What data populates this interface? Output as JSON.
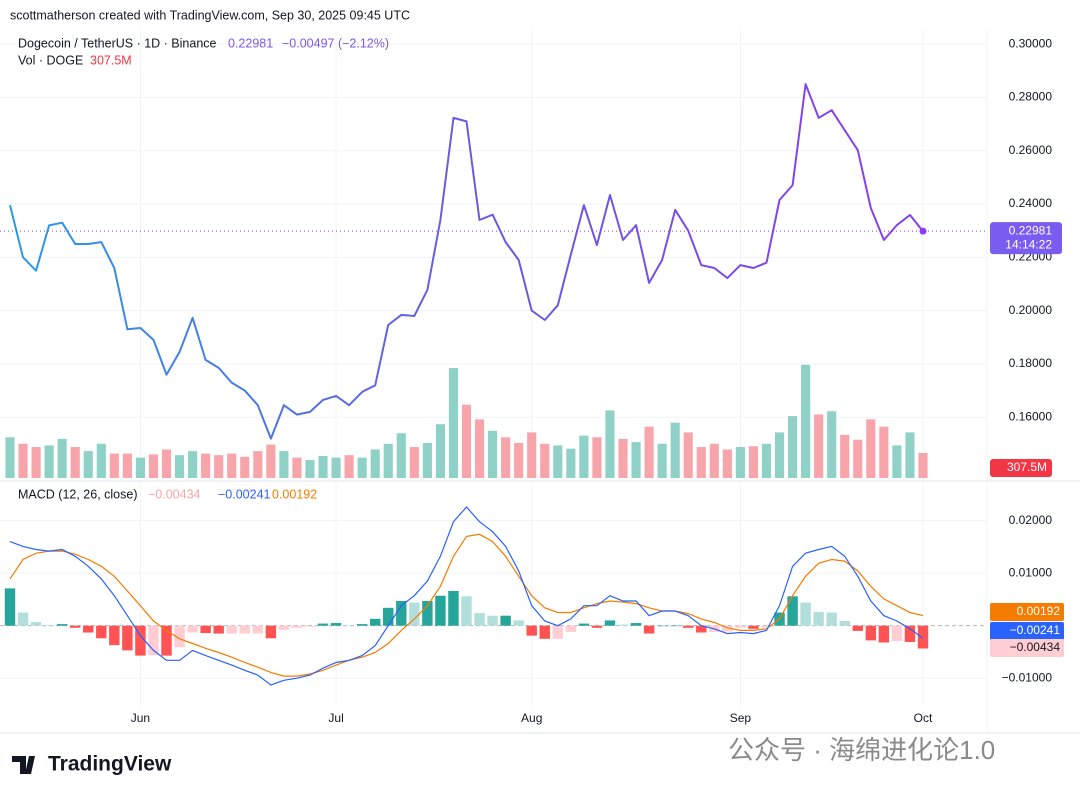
{
  "header": {
    "credit": "scottmatherson created with TradingView.com, Sep 30, 2025 09:45 UTC",
    "symbol": "Dogecoin / TetherUS · 1D · Binance",
    "change": "−0.00497 (−2.12%)",
    "volume_title": "Vol · DOGE",
    "macd_title": "MACD (12, 26, close)",
    "countdown": "14:14:22"
  },
  "footer": {
    "logo": "TradingView",
    "watermark": "公众号 · 海绵进化论1.0"
  },
  "chart_data": [
    {
      "type": "line",
      "categories": [
        null,
        null,
        null,
        null,
        null,
        null,
        null,
        null,
        null,
        null,
        "Jun",
        null,
        null,
        null,
        null,
        null,
        null,
        null,
        null,
        null,
        null,
        null,
        null,
        null,
        null,
        "Jul",
        null,
        null,
        null,
        null,
        null,
        null,
        null,
        null,
        null,
        null,
        null,
        null,
        null,
        null,
        "Aug",
        null,
        null,
        null,
        null,
        null,
        null,
        null,
        null,
        null,
        null,
        null,
        null,
        null,
        null,
        null,
        "Sep",
        null,
        null,
        null,
        null,
        null,
        null,
        null,
        null,
        null,
        null,
        null,
        null,
        null,
        "Oct"
      ],
      "values": [
        0.2396,
        0.22,
        0.215,
        0.232,
        0.233,
        0.225,
        0.225,
        0.2257,
        0.216,
        0.193,
        0.1935,
        0.189,
        0.176,
        0.1845,
        0.1973,
        0.1815,
        0.1785,
        0.173,
        0.17,
        0.1645,
        0.152,
        0.1645,
        0.161,
        0.162,
        0.1665,
        0.168,
        0.1645,
        0.1695,
        0.172,
        0.1946,
        0.1984,
        0.198,
        0.2078,
        0.234,
        0.2723,
        0.271,
        0.234,
        0.236,
        0.2257,
        0.219,
        0.2,
        0.1965,
        0.202,
        0.221,
        0.2396,
        0.2246,
        0.2434,
        0.2265,
        0.2321,
        0.2104,
        0.219,
        0.2378,
        0.23,
        0.2171,
        0.216,
        0.2122,
        0.2171,
        0.216,
        0.218,
        0.2415,
        0.2471,
        0.285,
        0.2723,
        0.2752,
        0.2677,
        0.2602,
        0.2385,
        0.2265,
        0.2321,
        0.2359,
        0.22981
      ],
      "colors": [
        "#2a9ae8",
        "#6a5ae0",
        "#8b3df0"
      ],
      "ylim": [
        0.1372,
        0.3053
      ],
      "yticks": [
        {
          "value": 0.16,
          "label": "0.16000"
        },
        {
          "value": 0.18,
          "label": "0.18000"
        },
        {
          "value": 0.2,
          "label": "0.20000"
        },
        {
          "value": 0.22,
          "label": "0.22000"
        },
        {
          "value": 0.24,
          "label": "0.24000"
        },
        {
          "value": 0.26,
          "label": "0.26000"
        },
        {
          "value": 0.28,
          "label": "0.28000"
        },
        {
          "value": 0.3,
          "label": "0.30000"
        }
      ],
      "grid": true,
      "last_value_line": true,
      "volume": {
        "values": [
          500,
          420,
          380,
          400,
          480,
          380,
          330,
          420,
          300,
          300,
          250,
          290,
          350,
          280,
          330,
          300,
          280,
          300,
          260,
          330,
          410,
          330,
          250,
          220,
          270,
          250,
          280,
          250,
          350,
          420,
          550,
          380,
          430,
          660,
          1350,
          900,
          720,
          580,
          500,
          430,
          560,
          420,
          400,
          360,
          520,
          500,
          830,
          480,
          440,
          630,
          420,
          680,
          560,
          380,
          420,
          350,
          380,
          390,
          420,
          560,
          760,
          1390,
          780,
          820,
          530,
          470,
          720,
          630,
          400,
          560,
          307.5
        ],
        "ylim": [
          0,
          5500
        ],
        "up_color": "#8fd1c6",
        "down_color": "#f7a5aa",
        "label_color": "#f23645",
        "last_label": "307.5M"
      }
    },
    {
      "type": "macd",
      "ylim": [
        -0.0151,
        0.0264
      ],
      "yticks": [
        {
          "value": -0.01,
          "label": "−0.01000"
        },
        {
          "value": 0.01,
          "label": "0.01000"
        },
        {
          "value": 0.02,
          "label": "0.02000"
        }
      ],
      "zero_line": true,
      "macd": {
        "color": "#2962ff",
        "last_label": "−0.00241",
        "values": [
          0.016,
          0.0151,
          0.0145,
          0.0142,
          0.0145,
          0.0132,
          0.0113,
          0.0089,
          0.0057,
          0.0019,
          -0.0019,
          -0.0047,
          -0.0066,
          -0.0066,
          -0.0047,
          -0.0057,
          -0.0066,
          -0.0075,
          -0.0085,
          -0.0094,
          -0.0113,
          -0.0104,
          -0.01,
          -0.0094,
          -0.0081,
          -0.007,
          -0.0066,
          -0.0057,
          -0.0038,
          0,
          0.0038,
          0.0057,
          0.0085,
          0.0132,
          0.0198,
          0.0226,
          0.0198,
          0.0179,
          0.0151,
          0.0104,
          0.0038,
          0.0009,
          0,
          0.0013,
          0.0038,
          0.0038,
          0.0057,
          0.0047,
          0.0047,
          0.0019,
          0.0028,
          0.0028,
          0.0019,
          0,
          -0.0006,
          -0.0015,
          -0.0013,
          -0.0015,
          -0.0009,
          0.0038,
          0.0113,
          0.0138,
          0.0145,
          0.0151,
          0.0132,
          0.0094,
          0.0047,
          0.0019,
          0.0009,
          -0.0006,
          -0.00241
        ]
      },
      "signal": {
        "color": "#f57c00",
        "values": [
          0.0089,
          0.0126,
          0.0138,
          0.0142,
          0.0142,
          0.0136,
          0.0126,
          0.0113,
          0.0094,
          0.0066,
          0.0038,
          0.0009,
          -0.0009,
          -0.0025,
          -0.0034,
          -0.0043,
          -0.0051,
          -0.006,
          -0.007,
          -0.0079,
          -0.0089,
          -0.0096,
          -0.0096,
          -0.0092,
          -0.0085,
          -0.0075,
          -0.0066,
          -0.006,
          -0.0051,
          -0.0034,
          -0.0009,
          0.0013,
          0.0038,
          0.0075,
          0.0132,
          0.017,
          0.0174,
          0.016,
          0.0132,
          0.0094,
          0.0057,
          0.0034,
          0.0025,
          0.0025,
          0.0034,
          0.0042,
          0.0047,
          0.0045,
          0.0042,
          0.0034,
          0.0028,
          0.0028,
          0.0023,
          0.0013,
          0.0006,
          -0.0004,
          -0.0009,
          -0.0009,
          -0.0006,
          0.0013,
          0.0057,
          0.0094,
          0.0119,
          0.0126,
          0.0123,
          0.0104,
          0.0075,
          0.0051,
          0.0038,
          0.0025,
          0.00192
        ]
      },
      "histogram": {
        "colors": [
          "#26a69a",
          "#b2dfdb",
          "#ff5252",
          "#ffcdd2"
        ],
        "last_label": "−0.00434",
        "values": [
          0.0071,
          0.0025,
          0.0007,
          0,
          0.0003,
          -0.0004,
          -0.0013,
          -0.0024,
          -0.0037,
          -0.0047,
          -0.0057,
          -0.0056,
          -0.0057,
          -0.0041,
          -0.0013,
          -0.0014,
          -0.0015,
          -0.0015,
          -0.0015,
          -0.0015,
          -0.0024,
          -0.0008,
          -0.0004,
          -0.0002,
          0.0004,
          0.0005,
          0,
          0.0003,
          0.0013,
          0.0034,
          0.0047,
          0.0044,
          0.0047,
          0.0057,
          0.0066,
          0.0056,
          0.0024,
          0.0019,
          0.0019,
          0.001,
          -0.0019,
          -0.0025,
          -0.0025,
          -0.0012,
          0.0004,
          -0.0004,
          0.001,
          0.0002,
          0.0005,
          -0.0015,
          0,
          0,
          -0.0004,
          -0.0013,
          -0.0012,
          -0.0011,
          -0.0004,
          -0.0006,
          -0.0003,
          0.0025,
          0.0056,
          0.0044,
          0.0026,
          0.0025,
          0.0009,
          -0.001,
          -0.0028,
          -0.0032,
          -0.0029,
          -0.0031,
          -0.00434
        ]
      }
    }
  ]
}
